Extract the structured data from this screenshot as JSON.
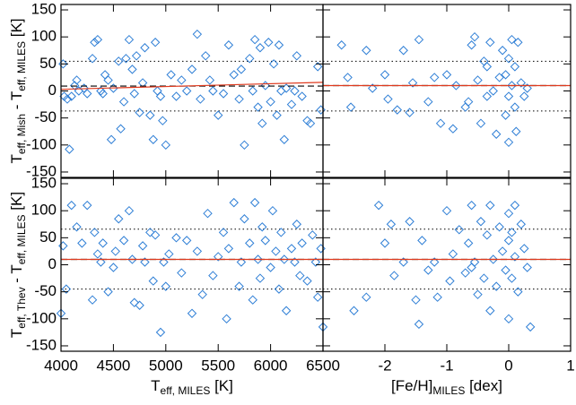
{
  "chart_data": [
    {
      "type": "scatter",
      "color": "#2f7fd6",
      "fit_color": "#e03a1e",
      "xlim": [
        4000,
        6500
      ],
      "xticks": [
        4000,
        4500,
        5000,
        5500,
        6000,
        6500
      ],
      "xtick_labels": false,
      "ylim": [
        -160,
        160
      ],
      "yticks": [
        -150,
        -100,
        -50,
        0,
        50,
        100,
        150
      ],
      "ytick_labels": true,
      "ylabel": [
        "T",
        "eff, Mish",
        " - T",
        "eff, MILES",
        " [K]"
      ],
      "dotted_levels": [
        55,
        -37
      ],
      "dashed_level": 9,
      "fit": {
        "x": [
          4000,
          6500
        ],
        "values": [
          3,
          16
        ]
      },
      "x": [
        4020,
        4030,
        4060,
        4080,
        4100,
        4130,
        4150,
        4170,
        4220,
        4250,
        4300,
        4320,
        4350,
        4380,
        4400,
        4420,
        4450,
        4480,
        4500,
        4550,
        4570,
        4600,
        4620,
        4650,
        4680,
        4700,
        4720,
        4750,
        4780,
        4800,
        4850,
        4880,
        4900,
        4920,
        4950,
        4970,
        5000,
        5050,
        5100,
        5150,
        5200,
        5250,
        5300,
        5330,
        5380,
        5420,
        5450,
        5500,
        5550,
        5600,
        5650,
        5700,
        5720,
        5750,
        5800,
        5830,
        5850,
        5880,
        5900,
        5920,
        5950,
        5980,
        6000,
        6030,
        6060,
        6080,
        6100,
        6130,
        6150,
        6200,
        6230,
        6250,
        6300,
        6350,
        6380,
        6450,
        6480
      ],
      "values": [
        50,
        -10,
        -15,
        -108,
        -10,
        10,
        20,
        0,
        5,
        -5,
        60,
        90,
        95,
        0,
        -5,
        30,
        20,
        -90,
        5,
        55,
        -70,
        -20,
        60,
        95,
        40,
        -5,
        65,
        -40,
        15,
        80,
        -45,
        -90,
        90,
        0,
        -10,
        -55,
        -100,
        30,
        -10,
        20,
        0,
        40,
        105,
        -15,
        65,
        20,
        0,
        -45,
        -5,
        85,
        30,
        -15,
        40,
        -100,
        60,
        0,
        95,
        -30,
        80,
        -60,
        10,
        90,
        -20,
        50,
        -45,
        85,
        0,
        -90,
        5,
        -25,
        0,
        65,
        -10,
        -55,
        -60,
        45,
        -35
      ]
    },
    {
      "type": "scatter",
      "color": "#2f7fd6",
      "fit_color": "#e03a1e",
      "xlim": [
        -3,
        1
      ],
      "xticks": [
        -2,
        -1,
        0,
        1
      ],
      "xtick_labels": false,
      "ylim": [
        -160,
        160
      ],
      "yticks": [
        -150,
        -100,
        -50,
        0,
        50,
        100,
        150
      ],
      "ytick_labels": false,
      "dotted_levels": [
        55,
        -37
      ],
      "dashed_level": 10,
      "fit": {
        "x": [
          -3,
          1
        ],
        "values": [
          10,
          10
        ]
      },
      "x": [
        -2.7,
        -2.6,
        -2.55,
        -2.3,
        -2.2,
        -2.0,
        -1.95,
        -1.8,
        -1.7,
        -1.6,
        -1.55,
        -1.45,
        -1.3,
        -1.2,
        -1.1,
        -1.0,
        -0.9,
        -0.85,
        -0.7,
        -0.6,
        -0.55,
        -0.5,
        -0.45,
        -0.4,
        -0.35,
        -0.3,
        -0.25,
        -0.2,
        -0.15,
        -0.1,
        -0.05,
        0.0,
        0.0,
        0.05,
        0.05,
        0.1,
        0.1,
        0.12,
        0.15,
        0.2,
        0.25,
        0.3,
        -0.35,
        -0.65,
        0.0,
        -0.05
      ],
      "values": [
        85,
        25,
        -30,
        75,
        5,
        30,
        -15,
        -35,
        75,
        -40,
        15,
        95,
        -20,
        25,
        -60,
        30,
        -70,
        10,
        -30,
        85,
        100,
        20,
        -60,
        55,
        -10,
        90,
        0,
        -80,
        25,
        75,
        -45,
        60,
        -95,
        95,
        10,
        -30,
        45,
        -75,
        90,
        15,
        -10,
        5,
        45,
        -20,
        -10,
        30
      ]
    },
    {
      "type": "scatter",
      "color": "#2f7fd6",
      "fit_color": "#e03a1e",
      "xlim": [
        4000,
        6500
      ],
      "xticks": [
        4000,
        4500,
        5000,
        5500,
        6000,
        6500
      ],
      "xtick_labels": true,
      "ylim": [
        -160,
        160
      ],
      "yticks": [
        -150,
        -100,
        -50,
        0,
        50,
        100,
        150
      ],
      "ytick_labels": true,
      "xlabel": [
        "T",
        "eff, MILES",
        " [K]"
      ],
      "ylabel": [
        "T",
        "eff, Thev",
        " - T",
        "eff, MILES",
        " [K]"
      ],
      "dotted_levels": [
        66,
        -45
      ],
      "dashed_level": 10,
      "fit": {
        "x": [
          4000,
          6500
        ],
        "values": [
          10,
          10
        ]
      },
      "x": [
        4000,
        4020,
        4050,
        4100,
        4150,
        4200,
        4250,
        4300,
        4320,
        4350,
        4380,
        4400,
        4450,
        4500,
        4520,
        4550,
        4600,
        4650,
        4680,
        4700,
        4750,
        4780,
        4800,
        4850,
        4880,
        4900,
        4950,
        4980,
        5000,
        5030,
        5100,
        5150,
        5200,
        5250,
        5300,
        5350,
        5400,
        5450,
        5500,
        5550,
        5580,
        5600,
        5650,
        5700,
        5720,
        5750,
        5800,
        5830,
        5850,
        5880,
        5900,
        5920,
        5950,
        6000,
        6020,
        6050,
        6080,
        6100,
        6130,
        6150,
        6200,
        6230,
        6250,
        6280,
        6300,
        6350,
        6400,
        6430,
        6450,
        6480,
        6500
      ],
      "values": [
        -90,
        35,
        -45,
        110,
        70,
        40,
        110,
        -65,
        60,
        20,
        5,
        40,
        -50,
        -5,
        25,
        85,
        45,
        100,
        10,
        -70,
        -75,
        35,
        5,
        60,
        -30,
        55,
        -125,
        5,
        -40,
        20,
        50,
        -15,
        45,
        -90,
        25,
        -55,
        95,
        -20,
        15,
        60,
        -100,
        30,
        115,
        -40,
        5,
        85,
        40,
        -65,
        115,
        10,
        -25,
        70,
        45,
        -5,
        100,
        25,
        -45,
        60,
        10,
        -85,
        30,
        5,
        75,
        -20,
        40,
        -30,
        55,
        5,
        -60,
        30,
        -115
      ]
    },
    {
      "type": "scatter",
      "color": "#2f7fd6",
      "fit_color": "#e03a1e",
      "xlim": [
        -3,
        1
      ],
      "xticks": [
        -2,
        -1,
        0,
        1
      ],
      "xtick_labels": true,
      "ylim": [
        -160,
        160
      ],
      "yticks": [
        -150,
        -100,
        -50,
        0,
        50,
        100,
        150
      ],
      "ytick_labels": false,
      "xlabel": [
        "[Fe/H]",
        "MILES",
        " [dex]"
      ],
      "dotted_levels": [
        66,
        -45
      ],
      "dashed_level": 10,
      "fit": {
        "x": [
          -3,
          1
        ],
        "values": [
          10,
          10
        ]
      },
      "x": [
        -2.5,
        -2.3,
        -2.1,
        -2.0,
        -1.9,
        -1.85,
        -1.7,
        -1.6,
        -1.5,
        -1.45,
        -1.4,
        -1.3,
        -1.2,
        -1.15,
        -1.0,
        -0.95,
        -0.9,
        -0.8,
        -0.7,
        -0.65,
        -0.6,
        -0.55,
        -0.5,
        -0.45,
        -0.4,
        -0.35,
        -0.3,
        -0.25,
        -0.2,
        -0.15,
        -0.1,
        -0.05,
        0.0,
        0.0,
        0.0,
        0.05,
        0.05,
        0.1,
        0.1,
        0.15,
        0.2,
        0.25,
        0.3,
        0.35,
        -0.6,
        -0.3
      ],
      "values": [
        -85,
        -60,
        110,
        40,
        75,
        -20,
        5,
        80,
        -65,
        -110,
        45,
        -10,
        5,
        -60,
        100,
        -30,
        20,
        65,
        -15,
        40,
        110,
        5,
        -55,
        80,
        -25,
        55,
        110,
        10,
        -40,
        70,
        25,
        -10,
        95,
        45,
        -100,
        60,
        -25,
        110,
        15,
        -50,
        75,
        30,
        -5,
        -115,
        -5,
        -85
      ]
    }
  ]
}
